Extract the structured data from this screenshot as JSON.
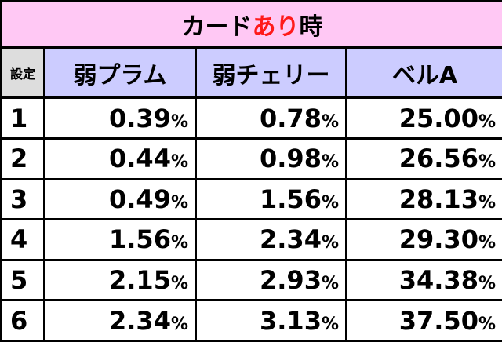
{
  "title": {
    "parts": [
      "カード",
      "あり",
      "時"
    ]
  },
  "table": {
    "headers": [
      "設定",
      "弱プラム",
      "弱チェリー",
      "ベルA"
    ],
    "rows": [
      {
        "setting": "1",
        "cells": [
          [
            "0.39",
            "%"
          ],
          [
            "0.78",
            "%"
          ],
          [
            "25.00",
            "%"
          ]
        ]
      },
      {
        "setting": "2",
        "cells": [
          [
            "0.44",
            "%"
          ],
          [
            "0.98",
            "%"
          ],
          [
            "26.56",
            "%"
          ]
        ]
      },
      {
        "setting": "3",
        "cells": [
          [
            "0.49",
            "%"
          ],
          [
            "1.56",
            "%"
          ],
          [
            "28.13",
            "%"
          ]
        ]
      },
      {
        "setting": "4",
        "cells": [
          [
            "1.56",
            "%"
          ],
          [
            "2.34",
            "%"
          ],
          [
            "29.30",
            "%"
          ]
        ]
      },
      {
        "setting": "5",
        "cells": [
          [
            "2.15",
            "%"
          ],
          [
            "2.93",
            "%"
          ],
          [
            "34.38",
            "%"
          ]
        ]
      },
      {
        "setting": "6",
        "cells": [
          [
            "2.34",
            "%"
          ],
          [
            "3.13",
            "%"
          ],
          [
            "37.50",
            "%"
          ]
        ]
      }
    ]
  }
}
